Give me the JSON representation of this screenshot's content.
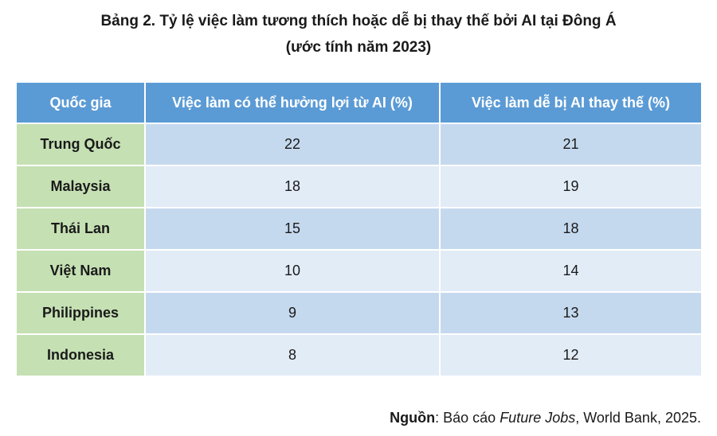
{
  "title": {
    "line1": "Bảng 2. Tỷ lệ việc làm tương thích hoặc dễ bị thay thế bởi AI tại Đông Á",
    "line2": "(ước tính năm 2023)"
  },
  "table": {
    "headers": [
      "Quốc gia",
      "Việc làm có thể hưởng lợi từ AI (%)",
      "Việc làm dễ bị AI thay thế (%)"
    ],
    "rows": [
      {
        "country": "Trung Quốc",
        "benefit": "22",
        "replace": "21"
      },
      {
        "country": "Malaysia",
        "benefit": "18",
        "replace": "19"
      },
      {
        "country": "Thái Lan",
        "benefit": "15",
        "replace": "18"
      },
      {
        "country": "Việt Nam",
        "benefit": "10",
        "replace": "14"
      },
      {
        "country": "Philippines",
        "benefit": "9",
        "replace": "13"
      },
      {
        "country": "Indonesia",
        "benefit": "8",
        "replace": "12"
      }
    ]
  },
  "source": {
    "label": "Nguồn",
    "text_before": ": Báo cáo ",
    "italic": "Future Jobs",
    "text_after": ", World Bank, 2025."
  },
  "colors": {
    "header_bg": "#5b9bd5",
    "country_bg": "#c5e0b3",
    "row_dark": "#c5d9ee",
    "row_light": "#e2ecf7"
  }
}
